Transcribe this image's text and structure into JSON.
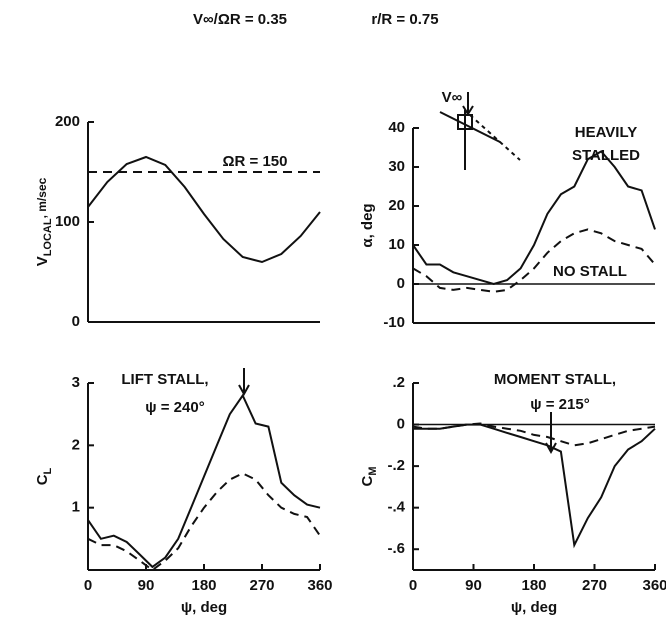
{
  "header": {
    "left": "V∞/ΩR = 0.35",
    "right": "r/R = 0.75"
  },
  "chart_data": [
    {
      "type": "line",
      "ylabel": "V",
      "ylabel_sub": "LOCAL",
      "ylabel_unit": ", m/sec",
      "xlim": [
        0,
        360
      ],
      "ylim": [
        0,
        200
      ],
      "yticks": [
        0,
        100,
        200
      ],
      "x": [
        0,
        30,
        60,
        90,
        120,
        150,
        180,
        210,
        240,
        270,
        300,
        330,
        360
      ],
      "series": [
        {
          "style": "solid",
          "color": "#111",
          "values": [
            115,
            140,
            158,
            165,
            157,
            135,
            108,
            83,
            65,
            60,
            68,
            86,
            110
          ]
        },
        {
          "style": "dashed",
          "color": "#111",
          "values": [
            150,
            150,
            150,
            150,
            150,
            150,
            150,
            150,
            150,
            150,
            150,
            150,
            150
          ]
        }
      ],
      "annotations": [
        "ΩR = 150"
      ]
    },
    {
      "type": "line",
      "ylabel": "α, deg",
      "xlim": [
        0,
        360
      ],
      "ylim": [
        -10,
        40
      ],
      "yticks": [
        {
          "value": -10,
          "label": "-10"
        },
        0,
        10,
        20,
        30,
        40
      ],
      "refline": 0,
      "x": [
        0,
        20,
        40,
        60,
        80,
        100,
        120,
        140,
        160,
        180,
        200,
        220,
        240,
        260,
        280,
        300,
        320,
        340,
        360
      ],
      "series": [
        {
          "style": "solid",
          "color": "#111",
          "values": [
            10,
            5,
            5,
            3,
            2,
            1,
            0,
            1,
            4,
            10,
            18,
            23,
            25,
            32,
            34,
            30,
            25,
            24,
            14
          ]
        },
        {
          "style": "dashed",
          "color": "#111",
          "values": [
            4,
            2,
            -1,
            -1.5,
            -1,
            -1.5,
            -2,
            -1.5,
            1,
            4,
            8,
            11,
            13,
            14,
            13,
            11,
            10,
            9,
            5
          ]
        }
      ],
      "annotations": [
        "V∞",
        "HEAVILY",
        "STALLED",
        "NO STALL"
      ]
    },
    {
      "type": "line",
      "ylabel": "C",
      "ylabel_sub": "L",
      "xlabel": "ψ, deg",
      "xlim": [
        0,
        360
      ],
      "ylim": [
        0,
        3
      ],
      "yticks": [
        1,
        2,
        3
      ],
      "xticks": [
        0,
        90,
        180,
        270,
        360
      ],
      "x": [
        0,
        20,
        40,
        60,
        80,
        100,
        120,
        140,
        160,
        180,
        200,
        220,
        240,
        260,
        280,
        300,
        320,
        340,
        360
      ],
      "series": [
        {
          "style": "solid",
          "color": "#111",
          "values": [
            0.8,
            0.5,
            0.55,
            0.45,
            0.25,
            0.05,
            0.2,
            0.5,
            1.0,
            1.5,
            2.0,
            2.5,
            2.8,
            2.35,
            2.3,
            1.4,
            1.2,
            1.05,
            1.0
          ]
        },
        {
          "style": "dashed",
          "color": "#111",
          "values": [
            0.5,
            0.4,
            0.4,
            0.3,
            0.15,
            0.0,
            0.15,
            0.35,
            0.7,
            1.0,
            1.25,
            1.45,
            1.55,
            1.45,
            1.2,
            1.0,
            0.9,
            0.85,
            0.55
          ]
        }
      ],
      "annotations": [
        "LIFT STALL,",
        "ψ = 240°"
      ]
    },
    {
      "type": "line",
      "ylabel": "C",
      "ylabel_sub": "M",
      "xlabel": "ψ, deg",
      "xlim": [
        0,
        360
      ],
      "ylim": [
        -0.7,
        0.2
      ],
      "refline": 0,
      "yticks": [
        {
          "value": 0.2,
          "label": ".2"
        },
        0,
        {
          "value": -0.2,
          "label": "-.2"
        },
        {
          "value": -0.4,
          "label": "-.4"
        },
        {
          "value": -0.6,
          "label": "-.6"
        }
      ],
      "xticks": [
        0,
        90,
        180,
        270,
        360
      ],
      "x": [
        0,
        20,
        40,
        60,
        80,
        100,
        120,
        140,
        160,
        180,
        200,
        220,
        240,
        260,
        280,
        300,
        320,
        340,
        360
      ],
      "series": [
        {
          "style": "solid",
          "color": "#111",
          "values": [
            -0.02,
            -0.02,
            -0.02,
            -0.01,
            0,
            0,
            -0.02,
            -0.04,
            -0.06,
            -0.08,
            -0.1,
            -0.13,
            -0.58,
            -0.45,
            -0.35,
            -0.2,
            -0.12,
            -0.08,
            -0.02
          ]
        },
        {
          "style": "dashed",
          "color": "#111",
          "values": [
            -0.01,
            -0.02,
            -0.02,
            -0.01,
            0,
            0.005,
            -0.01,
            -0.02,
            -0.03,
            -0.05,
            -0.06,
            -0.08,
            -0.1,
            -0.09,
            -0.07,
            -0.05,
            -0.03,
            -0.02,
            -0.01
          ]
        }
      ],
      "annotations": [
        "MOMENT STALL,",
        "ψ = 215°"
      ]
    }
  ]
}
